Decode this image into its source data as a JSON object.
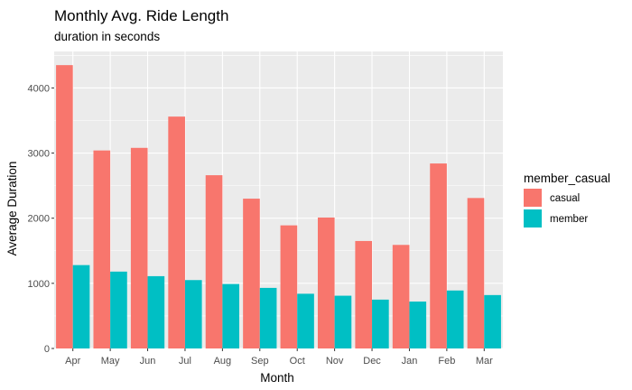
{
  "chart_data": {
    "type": "bar",
    "title": "Monthly Avg. Ride Length",
    "subtitle": "duration in seconds",
    "xlabel": "Month",
    "ylabel": "Average Duration",
    "categories": [
      "Apr",
      "May",
      "Jun",
      "Jul",
      "Aug",
      "Sep",
      "Oct",
      "Nov",
      "Dec",
      "Jan",
      "Feb",
      "Mar"
    ],
    "series": [
      {
        "name": "casual",
        "color": "#F8766D",
        "values": [
          4350,
          3040,
          3080,
          3560,
          2660,
          2300,
          1890,
          2010,
          1650,
          1590,
          2840,
          2310
        ]
      },
      {
        "name": "member",
        "color": "#00BFC4",
        "values": [
          1280,
          1180,
          1110,
          1050,
          990,
          930,
          840,
          810,
          750,
          720,
          890,
          820
        ]
      }
    ],
    "ylim": [
      0,
      4560
    ],
    "yticks": [
      0,
      1000,
      2000,
      3000,
      4000
    ],
    "legend": {
      "title": "member_casual",
      "position": "right"
    },
    "grid": true,
    "panel_color": "#EBEBEB"
  }
}
